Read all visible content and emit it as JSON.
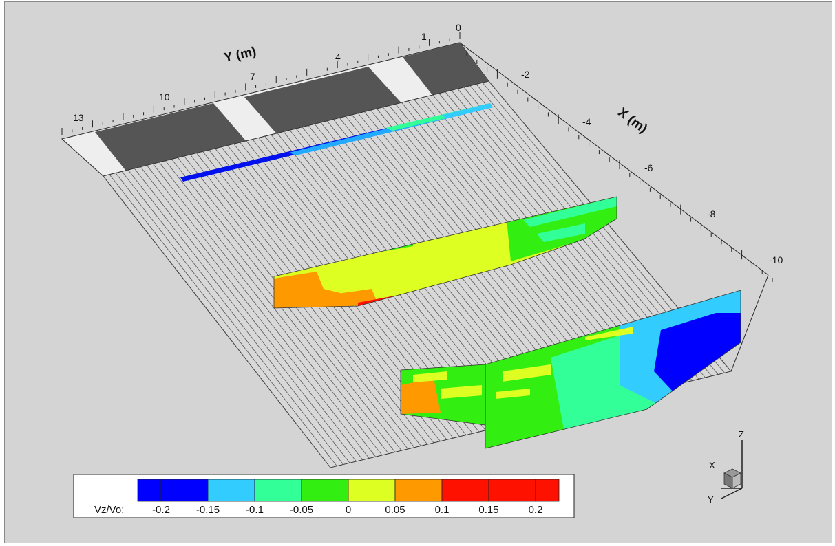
{
  "chart_data": {
    "type": "3d-surface-contour",
    "variable": "Vz/Vo",
    "y_axis": {
      "label": "Y (m)",
      "ticks": [
        "13",
        "10",
        "7",
        "4",
        "1",
        "0"
      ]
    },
    "x_axis": {
      "label": "X (m)",
      "ticks": [
        "-2",
        "-4",
        "-6",
        "-8",
        "-10"
      ]
    },
    "legend": {
      "label": "Vz/Vo:",
      "levels": [
        "-0.2",
        "-0.15",
        "-0.1",
        "-0.05",
        "0",
        "0.05",
        "0.1",
        "0.15",
        "0.2"
      ],
      "colors": [
        "#0000ff",
        "#0000ff",
        "#33ccff",
        "#33ff99",
        "#33ee11",
        "#ddff22",
        "#ff9900",
        "#ff1100",
        "#ff1100",
        "#ff1100"
      ]
    },
    "triad": {
      "z": "Z",
      "x": "X",
      "y": "Y"
    }
  }
}
